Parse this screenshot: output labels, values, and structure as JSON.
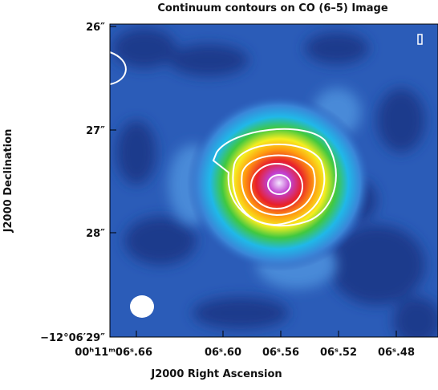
{
  "figure": {
    "title": "Continuum contours on CO (6–5) Image",
    "x_axis": {
      "label": "J2000 Right Ascension",
      "ticks": [
        "00ʰ11ᵐ06ˢ.66",
        "06ˢ.60",
        "06ˢ.56",
        "06ˢ.52",
        "06ˢ.48"
      ]
    },
    "y_axis": {
      "label": "J2000 Declination",
      "ticks": [
        "26″",
        "27″",
        "28″",
        "−12°06′29″"
      ]
    }
  }
}
